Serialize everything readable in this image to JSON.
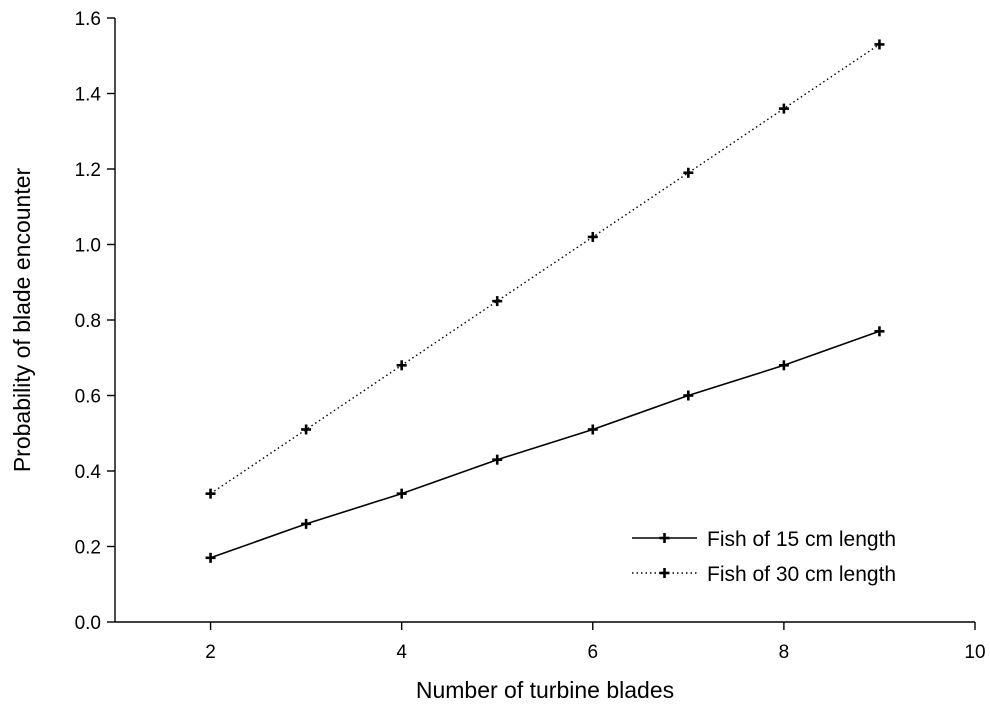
{
  "chart_data": {
    "type": "line",
    "xlabel": "Number of turbine blades",
    "ylabel": "Probability of blade encounter",
    "xlim": [
      1,
      10
    ],
    "ylim": [
      0.0,
      1.6
    ],
    "xticks": [
      2,
      4,
      6,
      8,
      10
    ],
    "yticks": [
      0.0,
      0.2,
      0.4,
      0.6,
      0.8,
      1.0,
      1.2,
      1.4,
      1.6
    ],
    "ytick_labels": [
      "0.0",
      "0.2",
      "0.4",
      "0.6",
      "0.8",
      "1.0",
      "1.2",
      "1.4",
      "1.6"
    ],
    "grid": false,
    "legend_position": "bottom-right",
    "series": [
      {
        "name": "Fish of 15 cm length",
        "line_style": "solid",
        "x": [
          2,
          3,
          4,
          5,
          6,
          7,
          8,
          9
        ],
        "values": [
          0.17,
          0.26,
          0.34,
          0.43,
          0.51,
          0.6,
          0.68,
          0.77
        ]
      },
      {
        "name": "Fish of 30 cm length",
        "line_style": "dotted",
        "x": [
          2,
          3,
          4,
          5,
          6,
          7,
          8,
          9
        ],
        "values": [
          0.34,
          0.51,
          0.68,
          0.85,
          1.02,
          1.19,
          1.36,
          1.53
        ]
      }
    ]
  }
}
